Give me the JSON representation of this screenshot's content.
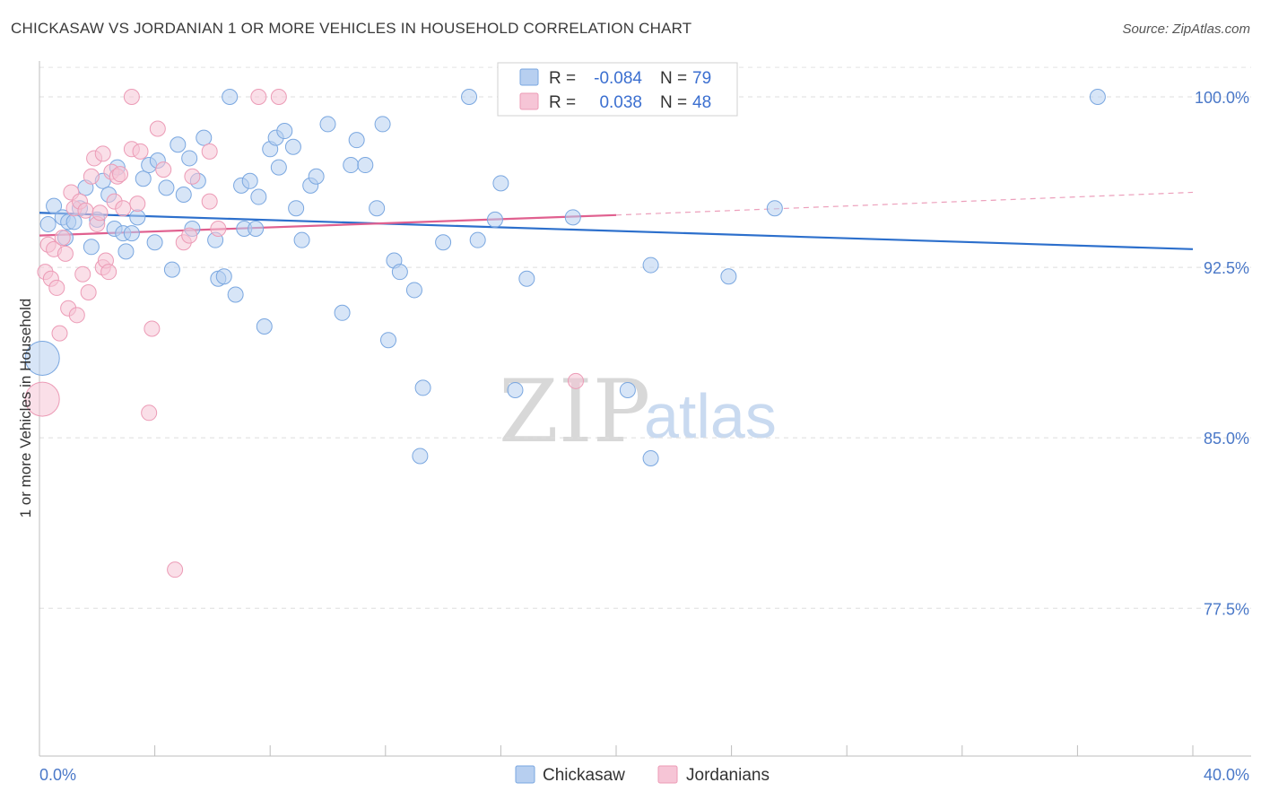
{
  "chart_data": {
    "type": "scatter",
    "title": "CHICKASAW VS JORDANIAN 1 OR MORE VEHICLES IN HOUSEHOLD CORRELATION CHART",
    "source": "Source: ZipAtlas.com",
    "ylabel": "1 or more Vehicles in Household",
    "xlim": [
      0,
      40
    ],
    "ylim": [
      71.0,
      101.5
    ],
    "x_tick_labels": [
      "0.0%",
      "40.0%"
    ],
    "y_ticks": [
      {
        "value": 100.0,
        "label": "100.0%"
      },
      {
        "value": 92.5,
        "label": "92.5%"
      },
      {
        "value": 85.0,
        "label": "85.0%"
      },
      {
        "value": 77.5,
        "label": "77.5%"
      }
    ],
    "grid": true,
    "legend_position": "bottom-center",
    "watermark": {
      "zip": "ZIP",
      "atlas": "atlas"
    },
    "series": [
      {
        "name": "Chickasaw",
        "color": "#7aa7e0",
        "fill": "#b7cff0",
        "line_color": "#2c6fcc",
        "R": "-0.084",
        "N": "79",
        "trend": {
          "x0": 0,
          "y0": 94.9,
          "x1": 40,
          "y1": 93.3
        },
        "points": [
          [
            0.3,
            94.4
          ],
          [
            0.5,
            95.2
          ],
          [
            0.8,
            94.7
          ],
          [
            0.9,
            93.8
          ],
          [
            1.0,
            94.5
          ],
          [
            1.2,
            94.5
          ],
          [
            1.4,
            95.1
          ],
          [
            1.6,
            96.0
          ],
          [
            1.8,
            93.4
          ],
          [
            2.0,
            94.6
          ],
          [
            2.2,
            96.3
          ],
          [
            2.4,
            95.7
          ],
          [
            2.6,
            94.2
          ],
          [
            2.7,
            96.9
          ],
          [
            2.9,
            94.0
          ],
          [
            3.0,
            93.2
          ],
          [
            3.2,
            94.0
          ],
          [
            3.4,
            94.7
          ],
          [
            3.6,
            96.4
          ],
          [
            3.8,
            97.0
          ],
          [
            4.0,
            93.6
          ],
          [
            4.1,
            97.2
          ],
          [
            4.4,
            96.0
          ],
          [
            4.6,
            92.4
          ],
          [
            4.8,
            97.9
          ],
          [
            5.0,
            95.7
          ],
          [
            5.2,
            97.3
          ],
          [
            5.3,
            94.2
          ],
          [
            5.5,
            96.3
          ],
          [
            5.7,
            98.2
          ],
          [
            6.1,
            93.7
          ],
          [
            6.2,
            92.0
          ],
          [
            6.4,
            92.1
          ],
          [
            6.6,
            100.0
          ],
          [
            6.8,
            91.3
          ],
          [
            7.0,
            96.1
          ],
          [
            7.1,
            94.2
          ],
          [
            7.3,
            96.3
          ],
          [
            7.5,
            94.2
          ],
          [
            7.6,
            95.6
          ],
          [
            7.8,
            89.9
          ],
          [
            8.0,
            97.7
          ],
          [
            8.2,
            98.2
          ],
          [
            8.3,
            96.9
          ],
          [
            8.5,
            98.5
          ],
          [
            8.8,
            97.8
          ],
          [
            8.9,
            95.1
          ],
          [
            9.1,
            93.7
          ],
          [
            9.4,
            96.1
          ],
          [
            9.6,
            96.5
          ],
          [
            10.0,
            98.8
          ],
          [
            10.5,
            90.5
          ],
          [
            10.8,
            97.0
          ],
          [
            11.0,
            98.1
          ],
          [
            11.3,
            97.0
          ],
          [
            11.7,
            95.1
          ],
          [
            11.9,
            98.8
          ],
          [
            12.1,
            89.3
          ],
          [
            12.3,
            92.8
          ],
          [
            12.5,
            92.3
          ],
          [
            13.0,
            91.5
          ],
          [
            13.3,
            87.2
          ],
          [
            13.2,
            84.2
          ],
          [
            14.0,
            93.6
          ],
          [
            14.9,
            100.0
          ],
          [
            15.2,
            93.7
          ],
          [
            15.8,
            94.6
          ],
          [
            16.0,
            96.2
          ],
          [
            16.5,
            87.1
          ],
          [
            16.9,
            92.0
          ],
          [
            18.1,
            100.0
          ],
          [
            18.5,
            94.7
          ],
          [
            20.4,
            87.1
          ],
          [
            21.2,
            92.6
          ],
          [
            21.2,
            84.1
          ],
          [
            23.9,
            92.1
          ],
          [
            25.5,
            95.1
          ],
          [
            36.7,
            100.0
          ],
          [
            0.1,
            88.5
          ]
        ],
        "sizes": {
          "large_point_index": 78
        }
      },
      {
        "name": "Jordanians",
        "color": "#ec9bb6",
        "fill": "#f6c5d6",
        "line_color": "#e0608f",
        "R": "0.038",
        "N": "48",
        "trend": {
          "x0": 0,
          "y0": 93.9,
          "x1": 20,
          "y1": 94.8
        },
        "trend_dashed": {
          "x0": 20,
          "y0": 94.8,
          "x1": 40,
          "y1": 95.8
        },
        "points": [
          [
            0.2,
            92.3
          ],
          [
            0.3,
            93.5
          ],
          [
            0.4,
            92.0
          ],
          [
            0.5,
            93.3
          ],
          [
            0.6,
            91.6
          ],
          [
            0.7,
            89.6
          ],
          [
            0.8,
            93.8
          ],
          [
            0.9,
            93.1
          ],
          [
            1.0,
            90.7
          ],
          [
            1.1,
            95.8
          ],
          [
            1.2,
            95.1
          ],
          [
            1.3,
            90.4
          ],
          [
            1.4,
            95.4
          ],
          [
            1.5,
            92.2
          ],
          [
            1.6,
            95.0
          ],
          [
            1.7,
            91.4
          ],
          [
            1.8,
            96.5
          ],
          [
            1.9,
            97.3
          ],
          [
            2.0,
            94.4
          ],
          [
            2.1,
            94.9
          ],
          [
            2.2,
            97.5
          ],
          [
            2.2,
            92.5
          ],
          [
            2.3,
            92.8
          ],
          [
            2.4,
            92.3
          ],
          [
            2.5,
            96.7
          ],
          [
            2.6,
            95.4
          ],
          [
            2.7,
            96.5
          ],
          [
            2.8,
            96.6
          ],
          [
            2.9,
            95.1
          ],
          [
            3.2,
            100.0
          ],
          [
            3.2,
            97.7
          ],
          [
            3.4,
            95.3
          ],
          [
            3.5,
            97.6
          ],
          [
            3.8,
            86.1
          ],
          [
            3.9,
            89.8
          ],
          [
            4.1,
            98.6
          ],
          [
            4.3,
            96.8
          ],
          [
            4.7,
            79.2
          ],
          [
            5.0,
            93.6
          ],
          [
            5.2,
            93.9
          ],
          [
            5.3,
            96.5
          ],
          [
            5.9,
            97.6
          ],
          [
            5.9,
            95.4
          ],
          [
            6.2,
            94.2
          ],
          [
            7.6,
            100.0
          ],
          [
            8.3,
            100.0
          ],
          [
            18.6,
            87.5
          ],
          [
            0.1,
            86.7
          ]
        ],
        "sizes": {
          "large_point_index": 47
        }
      }
    ]
  }
}
